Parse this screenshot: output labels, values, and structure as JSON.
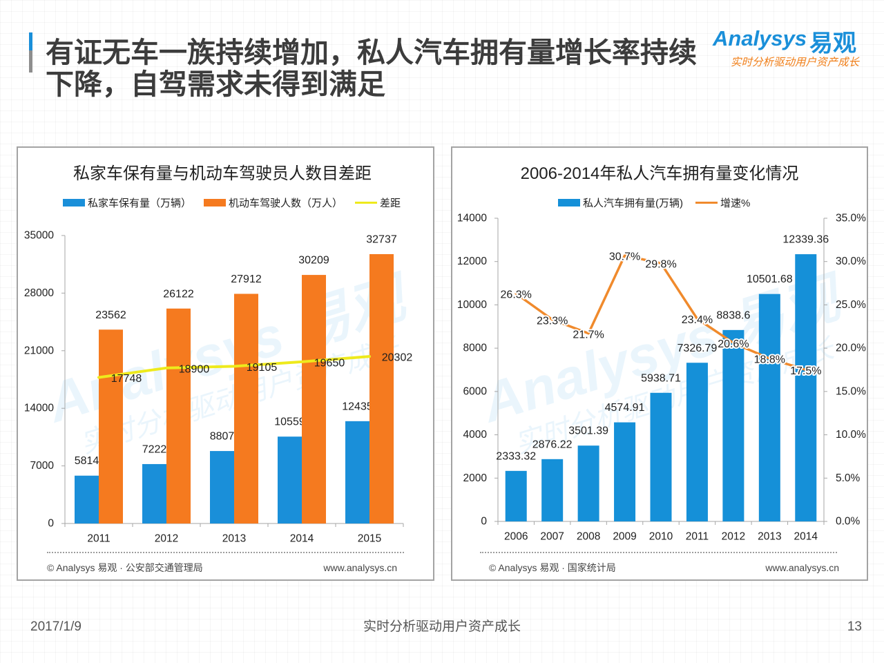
{
  "theme": {
    "brand_blue": "#1a8fd9",
    "brand_orange": "#f07f1a",
    "title_color": "#3c3c3c",
    "accent_gray": "#8e8e8e"
  },
  "slide": {
    "title_lines": [
      "有证无车一族持续增加，私人汽车拥有量增长率持续",
      "下降，自驾需求未得到满足"
    ]
  },
  "logo": {
    "brand": "Analysys",
    "brand_cn": "易观",
    "slogan": "实时分析驱动用户资产成长"
  },
  "footer": {
    "date": "2017/1/9",
    "slogan": "实时分析驱动用户资产成长",
    "page": "13"
  },
  "chart_data": [
    {
      "type": "bar",
      "title": "私家车保有量与机动车驾驶员人数目差距",
      "categories": [
        "2011",
        "2012",
        "2013",
        "2014",
        "2015"
      ],
      "series": [
        {
          "name": "私家车保有量（万辆）",
          "type": "bar",
          "color": "#1a8fd9",
          "values": [
            5814,
            7222,
            8807,
            10559,
            12435
          ]
        },
        {
          "name": "机动车驾驶人数（万人）",
          "type": "bar",
          "color": "#f57a1f",
          "values": [
            23562,
            26122,
            27912,
            30209,
            32737
          ]
        },
        {
          "name": "差距",
          "type": "line",
          "color": "#eeea1c",
          "values": [
            17748,
            18900,
            19105,
            19650,
            20302
          ]
        }
      ],
      "ylim": [
        0,
        35000
      ],
      "yticks": [
        0,
        7000,
        14000,
        21000,
        28000,
        35000
      ],
      "legend": "top",
      "grid": false,
      "source": "© Analysys 易观 · 公安部交通管理局",
      "url": "www.analysys.cn"
    },
    {
      "type": "bar",
      "title": "2006-2014年私人汽车拥有量变化情况",
      "categories": [
        "2006",
        "2007",
        "2008",
        "2009",
        "2010",
        "2011",
        "2012",
        "2013",
        "2014"
      ],
      "series": [
        {
          "name": "私人汽车拥有量(万辆)",
          "type": "bar",
          "axis": "left",
          "color": "#1590d8",
          "values": [
            2333.32,
            2876.22,
            3501.39,
            4574.91,
            5938.71,
            7326.79,
            8838.6,
            10501.68,
            12339.36
          ]
        },
        {
          "name": "增速%",
          "type": "line",
          "axis": "right",
          "color": "#f08a2c",
          "values": [
            26.3,
            23.3,
            21.7,
            30.7,
            29.8,
            23.4,
            20.6,
            18.8,
            17.5
          ],
          "labels": [
            "26.3%",
            "23.3%",
            "21.7%",
            "30.7%",
            "29.8%",
            "23.4%",
            "20.6%",
            "18.8%",
            "17.5%"
          ]
        }
      ],
      "ylim": [
        0,
        14000
      ],
      "yticks": [
        0,
        2000,
        4000,
        6000,
        8000,
        10000,
        12000,
        14000
      ],
      "y2lim": [
        0,
        35
      ],
      "y2ticks": [
        0,
        5,
        10,
        15,
        20,
        25,
        30,
        35
      ],
      "y2tick_labels": [
        "0.0%",
        "5.0%",
        "10.0%",
        "15.0%",
        "20.0%",
        "25.0%",
        "30.0%",
        "35.0%"
      ],
      "legend": "top",
      "grid": false,
      "source": "© Analysys 易观 · 国家统计局",
      "url": "www.analysys.cn"
    }
  ]
}
